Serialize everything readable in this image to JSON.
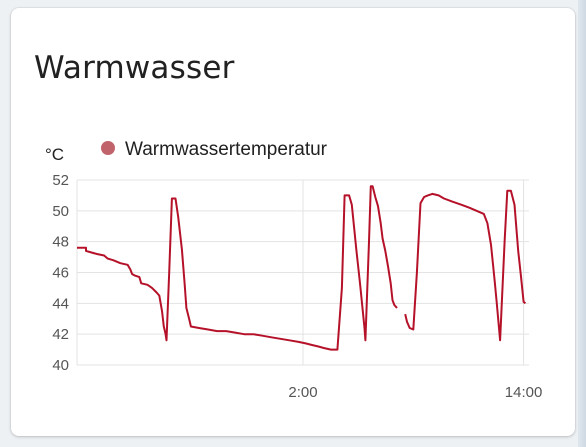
{
  "card": {
    "title": "Warmwasser"
  },
  "chart_data": {
    "type": "line",
    "title": "",
    "xlabel": "",
    "ylabel": "°C",
    "ylim": [
      40,
      52
    ],
    "yticks": [
      40,
      42,
      44,
      46,
      48,
      50,
      52
    ],
    "xticks": [
      "2:00",
      "14:00"
    ],
    "grid": true,
    "legend_position": "top",
    "series": [
      {
        "name": "Warmwassertemperatur",
        "color": "#b5122a",
        "legend_color": "#c0636b",
        "segments": [
          [
            [
              0.0,
              47.6
            ],
            [
              1.0,
              47.6
            ],
            [
              1.0,
              47.4
            ],
            [
              1.6,
              47.3
            ],
            [
              2.2,
              47.2
            ],
            [
              3.0,
              47.1
            ],
            [
              3.4,
              46.9
            ],
            [
              4.0,
              46.8
            ],
            [
              4.8,
              46.6
            ],
            [
              5.6,
              46.5
            ],
            [
              5.9,
              46.2
            ],
            [
              6.1,
              45.9
            ],
            [
              6.4,
              45.8
            ],
            [
              6.9,
              45.7
            ],
            [
              7.1,
              45.3
            ],
            [
              7.8,
              45.2
            ],
            [
              8.3,
              45.0
            ],
            [
              8.8,
              44.7
            ],
            [
              9.1,
              44.5
            ],
            [
              9.4,
              43.5
            ],
            [
              9.6,
              42.5
            ],
            [
              9.8,
              42.0
            ],
            [
              9.9,
              41.6
            ],
            [
              10.2,
              46.0
            ],
            [
              10.5,
              50.8
            ],
            [
              10.9,
              50.8
            ],
            [
              11.2,
              49.6
            ],
            [
              11.6,
              47.5
            ],
            [
              11.9,
              45.3
            ],
            [
              12.1,
              43.7
            ],
            [
              12.4,
              43.0
            ],
            [
              12.6,
              42.5
            ],
            [
              13.5,
              42.4
            ],
            [
              14.5,
              42.3
            ],
            [
              15.5,
              42.2
            ],
            [
              16.5,
              42.2
            ],
            [
              17.5,
              42.1
            ],
            [
              18.5,
              42.0
            ],
            [
              19.5,
              42.0
            ],
            [
              20.5,
              41.9
            ],
            [
              21.5,
              41.8
            ],
            [
              22.5,
              41.7
            ],
            [
              23.5,
              41.6
            ],
            [
              24.5,
              41.5
            ],
            [
              25.3,
              41.4
            ],
            [
              26.0,
              41.3
            ],
            [
              26.7,
              41.2
            ],
            [
              27.3,
              41.1
            ],
            [
              28.1,
              41.0
            ],
            [
              28.8,
              41.0
            ],
            [
              29.3,
              45.0
            ],
            [
              29.6,
              51.0
            ],
            [
              30.1,
              51.0
            ],
            [
              30.4,
              50.4
            ],
            [
              30.9,
              47.5
            ],
            [
              31.3,
              45.3
            ],
            [
              31.8,
              42.4
            ],
            [
              31.9,
              41.6
            ],
            [
              32.3,
              48.0
            ],
            [
              32.5,
              51.6
            ],
            [
              32.7,
              51.6
            ],
            [
              33.0,
              50.9
            ],
            [
              33.3,
              50.3
            ],
            [
              33.6,
              49.2
            ],
            [
              33.8,
              48.2
            ],
            [
              34.1,
              47.4
            ],
            [
              34.4,
              46.4
            ],
            [
              34.7,
              45.3
            ],
            [
              34.9,
              44.2
            ],
            [
              35.1,
              43.9
            ],
            [
              35.4,
              43.7
            ]
          ],
          [
            [
              36.3,
              43.3
            ],
            [
              36.5,
              42.8
            ],
            [
              36.8,
              42.4
            ],
            [
              37.2,
              42.3
            ],
            [
              37.6,
              46.0
            ],
            [
              38.0,
              50.5
            ],
            [
              38.4,
              50.9
            ],
            [
              38.8,
              51.0
            ],
            [
              39.3,
              51.1
            ],
            [
              40.0,
              51.0
            ],
            [
              40.6,
              50.8
            ],
            [
              41.5,
              50.6
            ],
            [
              42.5,
              50.4
            ],
            [
              43.4,
              50.2
            ],
            [
              44.2,
              50.0
            ],
            [
              45.0,
              49.8
            ],
            [
              45.4,
              49.2
            ],
            [
              45.8,
              47.8
            ],
            [
              46.2,
              45.5
            ],
            [
              46.4,
              44.2
            ],
            [
              46.8,
              41.6
            ],
            [
              47.3,
              48.0
            ],
            [
              47.6,
              51.3
            ],
            [
              48.0,
              51.3
            ],
            [
              48.4,
              50.4
            ],
            [
              48.8,
              47.4
            ],
            [
              49.1,
              45.8
            ],
            [
              49.4,
              44.1
            ],
            [
              49.6,
              44.0
            ]
          ]
        ]
      }
    ],
    "x_tick_positions": [
      25,
      49.4
    ],
    "x_range": [
      0,
      50
    ]
  }
}
